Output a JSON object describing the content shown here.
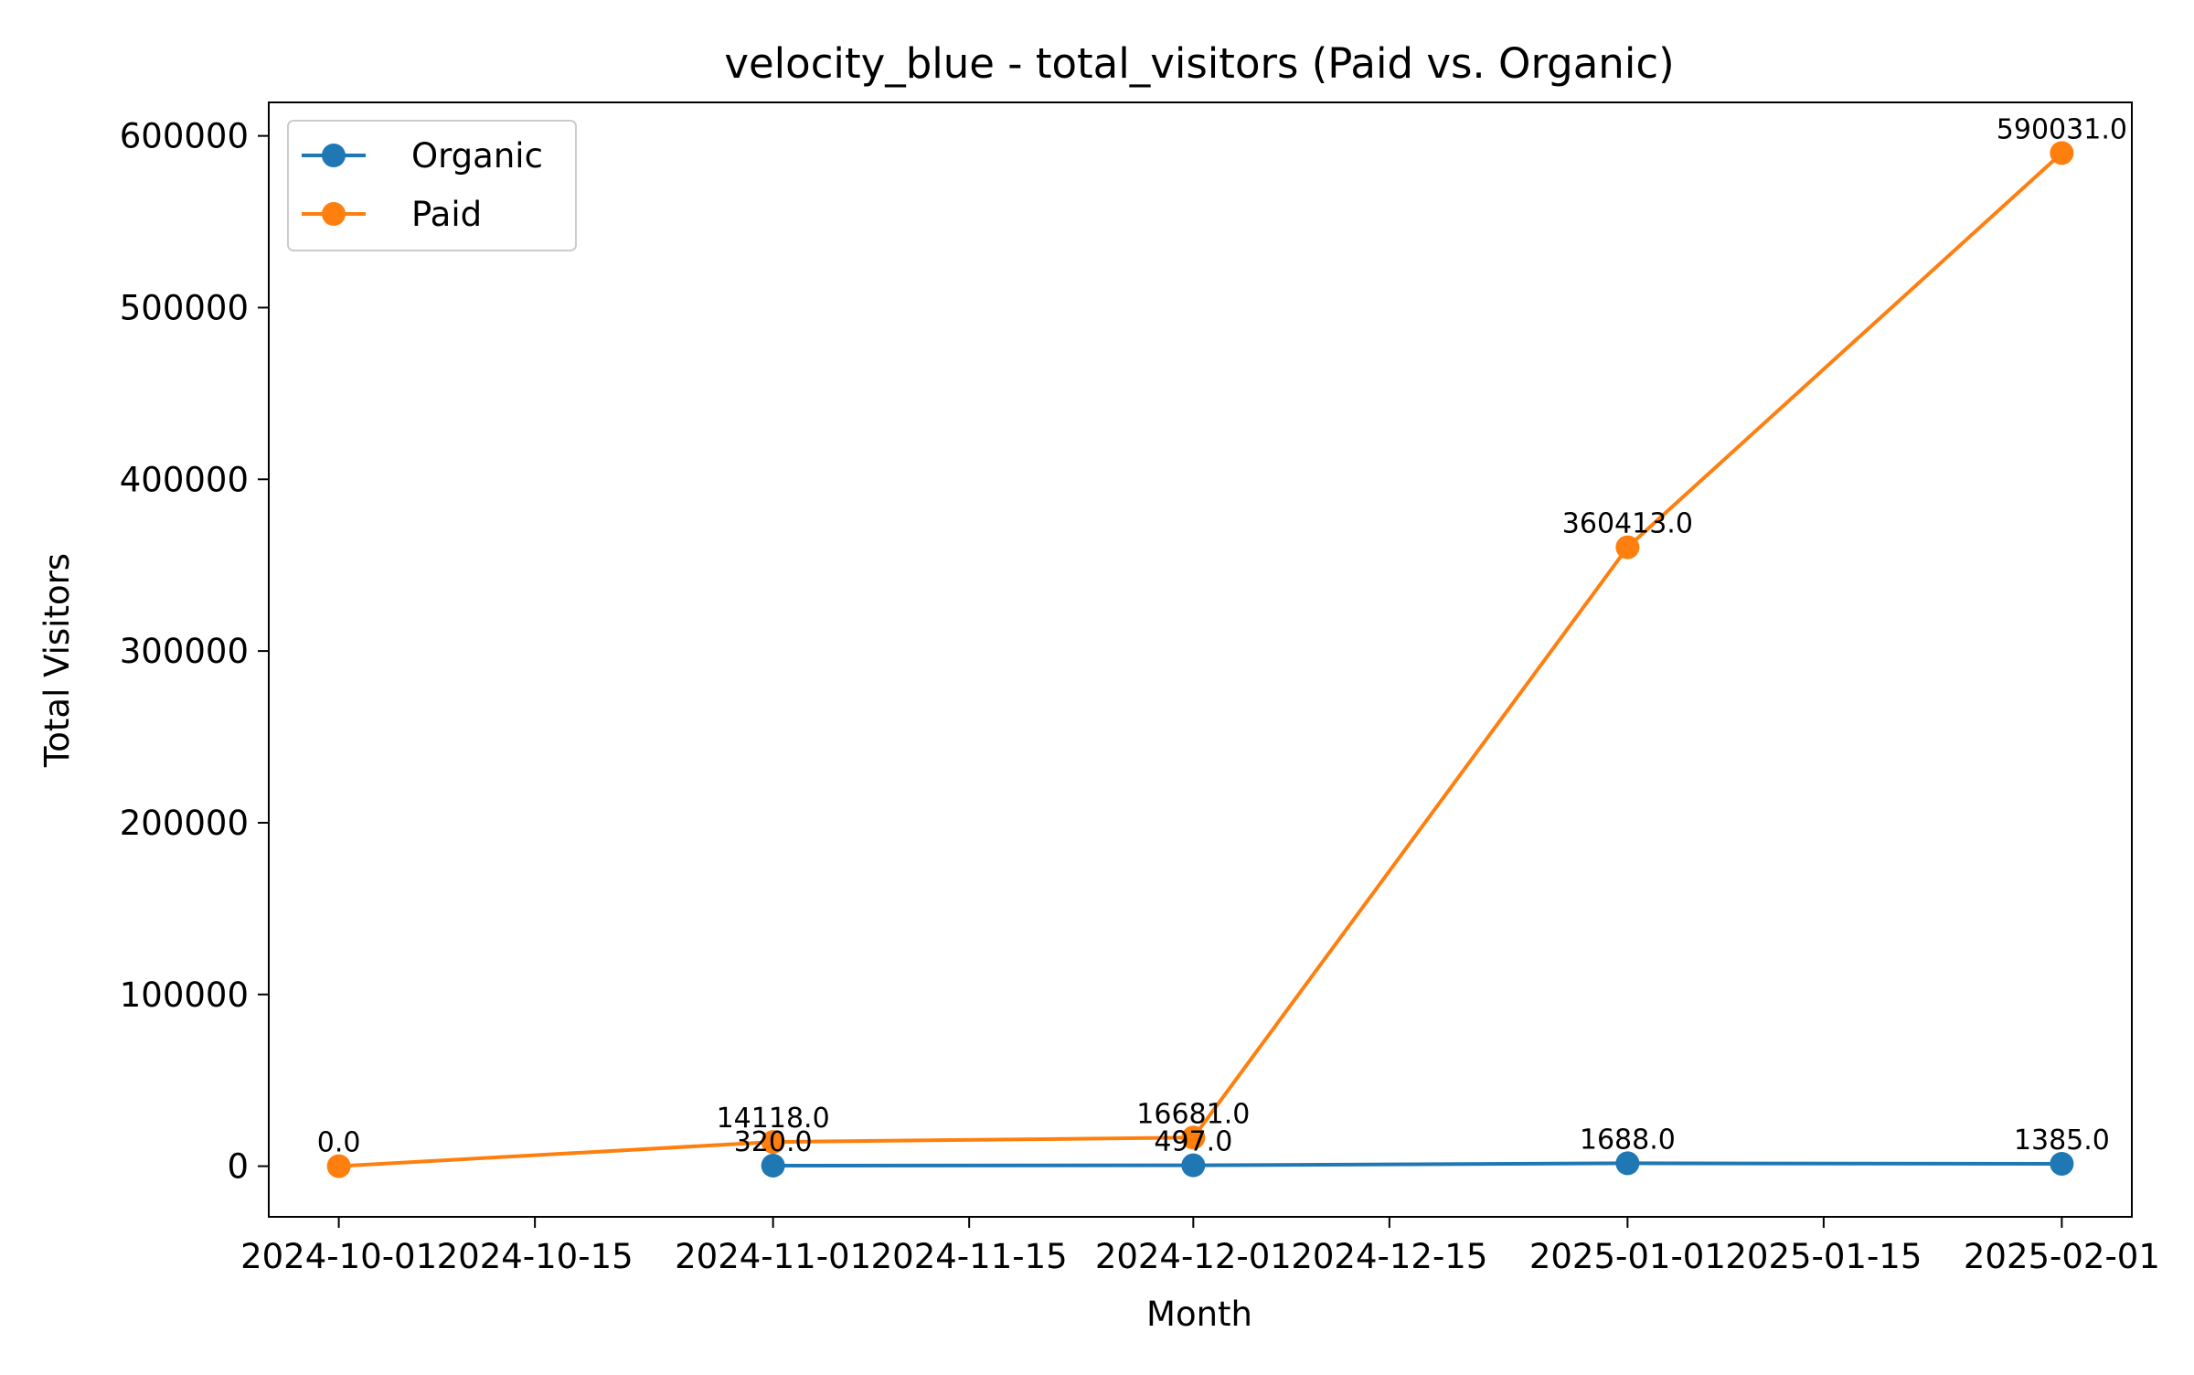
{
  "chart_data": {
    "type": "line",
    "title": "velocity_blue - total_visitors (Paid vs. Organic)",
    "xlabel": "Month",
    "ylabel": "Total Visitors",
    "x": [
      "2024-10-01",
      "2024-11-01",
      "2024-12-01",
      "2025-01-01",
      "2025-02-01"
    ],
    "x_ticks": [
      "2024-10-01",
      "2024-10-15",
      "2024-11-01",
      "2024-11-15",
      "2024-12-01",
      "2024-12-15",
      "2025-01-01",
      "2025-01-15",
      "2025-02-01"
    ],
    "xlim": [
      "2024-09-26",
      "2025-02-06"
    ],
    "y_ticks": [
      0,
      100000,
      200000,
      300000,
      400000,
      500000,
      600000
    ],
    "ylim": [
      -29500,
      619500
    ],
    "grid": false,
    "legend_position": "upper left",
    "series": [
      {
        "name": "Organic",
        "color": "#1f77b4",
        "values": [
          null,
          320,
          497,
          1688,
          1385
        ],
        "labels": [
          "",
          "320.0",
          "497.0",
          "1688.0",
          "1385.0"
        ]
      },
      {
        "name": "Paid",
        "color": "#ff7f0e",
        "values": [
          0,
          14118,
          16681,
          360413,
          590031
        ],
        "labels": [
          "0.0",
          "14118.0",
          "16681.0",
          "360413.0",
          "590031.0"
        ]
      }
    ]
  }
}
